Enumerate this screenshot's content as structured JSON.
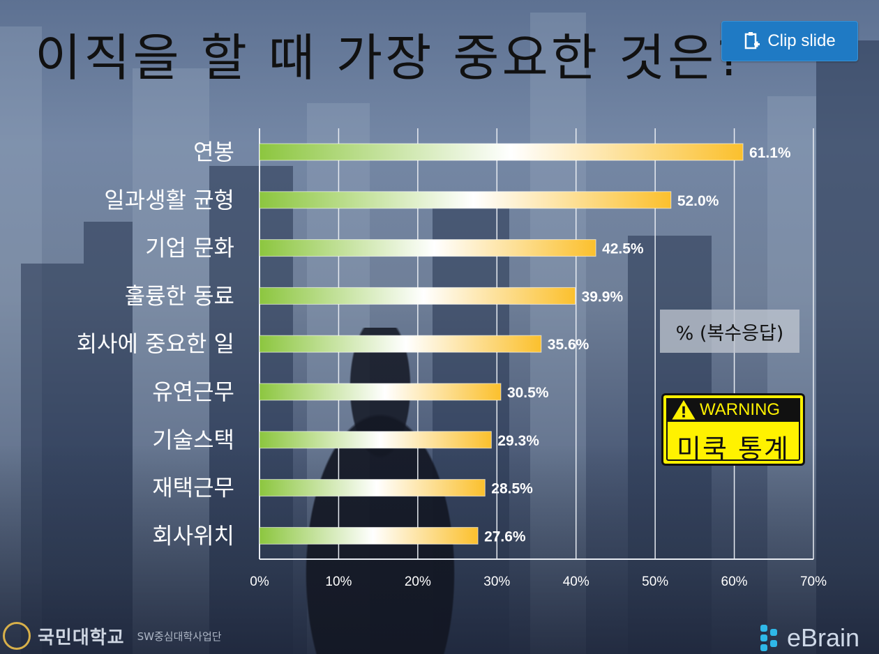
{
  "title": "이직을 할 때 가장 중요한 것은?",
  "clip_button": {
    "label": "Clip slide",
    "icon": "clip-icon",
    "color": "#1f7ac4"
  },
  "chart_data": {
    "type": "bar",
    "orientation": "horizontal",
    "title": "이직을 할 때 가장 중요한 것은?",
    "categories": [
      "연봉",
      "일과생활 균형",
      "기업 문화",
      "훌륭한 동료",
      "회사에 중요한 일",
      "유연근무",
      "기술스택",
      "재택근무",
      "회사위치"
    ],
    "values": [
      61.1,
      52.0,
      42.5,
      39.9,
      35.6,
      30.5,
      29.3,
      28.5,
      27.6
    ],
    "value_labels": [
      "61.1%",
      "52.0%",
      "42.5%",
      "39.9%",
      "35.6%",
      "30.5%",
      "29.3%",
      "28.5%",
      "27.6%"
    ],
    "xlim": [
      0,
      70
    ],
    "xticks": [
      0,
      10,
      20,
      30,
      40,
      50,
      60,
      70
    ],
    "xtick_labels": [
      "0%",
      "10%",
      "20%",
      "30%",
      "40%",
      "50%",
      "60%",
      "70%"
    ],
    "grid": true,
    "bar_colors": {
      "start": "#8cc63f",
      "mid": "#ffffff",
      "end": "#fbc02d"
    }
  },
  "note": "% (복수응답)",
  "warning": {
    "header": "WARNING",
    "text": "미쿡 통계",
    "icon": "warning-triangle-icon"
  },
  "footer": {
    "university": "국민대학교",
    "program": "SW중심대학사업단",
    "brand": "eBrain"
  }
}
